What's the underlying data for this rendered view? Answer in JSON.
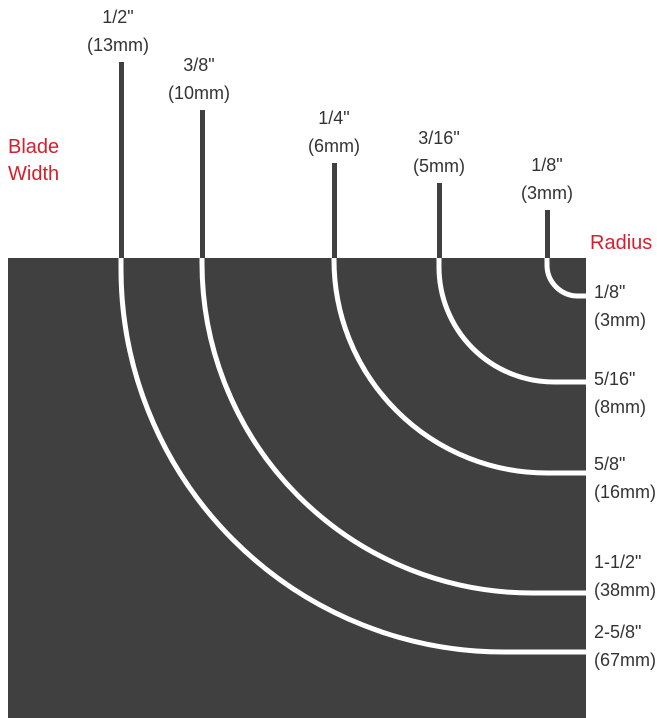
{
  "headings": {
    "blade_width": [
      "Blade",
      "Width"
    ],
    "radius": "Radius"
  },
  "blades": [
    {
      "width_in": "1/2\"",
      "width_mm": "(13mm)"
    },
    {
      "width_in": "3/8\"",
      "width_mm": "(10mm)"
    },
    {
      "width_in": "1/4\"",
      "width_mm": "(6mm)"
    },
    {
      "width_in": "3/16\"",
      "width_mm": "(5mm)"
    },
    {
      "width_in": "1/8\"",
      "width_mm": "(3mm)"
    }
  ],
  "radii": [
    {
      "radius_in": "1/8\"",
      "radius_mm": "(3mm)"
    },
    {
      "radius_in": "5/16\"",
      "radius_mm": "(8mm)"
    },
    {
      "radius_in": "5/8\"",
      "radius_mm": "(16mm)"
    },
    {
      "radius_in": "1-1/2\"",
      "radius_mm": "(38mm)"
    },
    {
      "radius_in": "2-5/8\"",
      "radius_mm": "(67mm)"
    }
  ],
  "colors": {
    "panel": "#404040",
    "blade": "#404040",
    "curve": "#ffffff",
    "label": "#333333",
    "accent": "#d71f2a"
  }
}
